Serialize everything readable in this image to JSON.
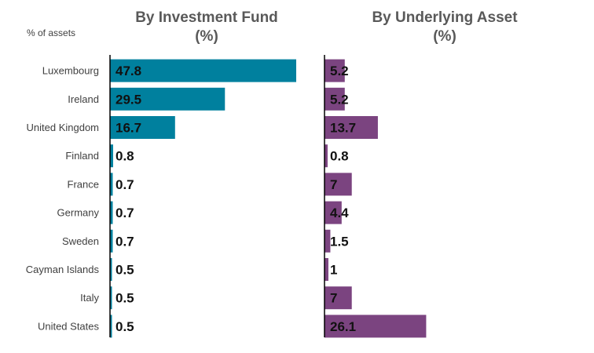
{
  "chart_data": {
    "type": "bar",
    "orientation": "horizontal",
    "unit_label": "% of assets",
    "categories": [
      "Luxembourg",
      "Ireland",
      "United Kingdom",
      "Finland",
      "France",
      "Germany",
      "Sweden",
      "Cayman Islands",
      "Italy",
      "United States"
    ],
    "panels": [
      {
        "title_line1": "By Investment Fund",
        "title_line2": "(%)",
        "color": "#00809E",
        "values": [
          47.8,
          29.5,
          16.7,
          0.8,
          0.7,
          0.7,
          0.7,
          0.5,
          0.5,
          0.5
        ],
        "labels": [
          "47.8",
          "29.5",
          "16.7",
          "0.8",
          "0.7",
          "0.7",
          "0.7",
          "0.5",
          "0.5",
          "0.5"
        ],
        "xlim": [
          0,
          50
        ]
      },
      {
        "title_line1": "By Underlying Asset",
        "title_line2": "(%)",
        "color": "#7B4480",
        "values": [
          5.2,
          5.2,
          13.7,
          0.8,
          7,
          4.4,
          1.5,
          1,
          7,
          26.1
        ],
        "labels": [
          "5.2",
          "5.2",
          "13.7",
          "0.8",
          "7",
          "4.4",
          "1.5",
          "1",
          "7",
          "26.1"
        ],
        "xlim": [
          0,
          50
        ]
      }
    ],
    "grid": false,
    "legend": "none"
  }
}
